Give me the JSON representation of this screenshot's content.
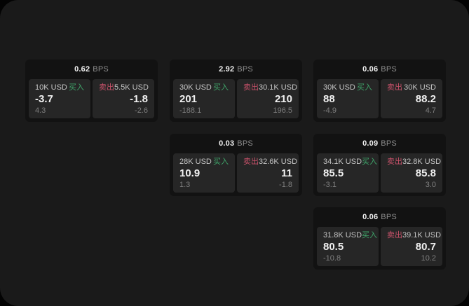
{
  "colors": {
    "window-bg": "#1a1a1a",
    "card-bg": "#121212",
    "tile-bg": "#262626",
    "text-bright": "#f0f0f0",
    "text-label": "#c4c4c4",
    "text-dim": "#8f8f8f",
    "text-faint": "#7f7f7f",
    "buy-green": "#3fa56a",
    "sell-red": "#c9526a"
  },
  "cards": [
    {
      "bps_value": "0.62",
      "bps_unit": "BPS",
      "buy": {
        "amount": "10K USD",
        "side_label": "买入",
        "value": "-3.7",
        "sub_value": "4.3"
      },
      "sell": {
        "amount": "5.5K USD",
        "side_label": "卖出",
        "value": "-1.8",
        "sub_value": "-2.6"
      }
    },
    {
      "bps_value": "2.92",
      "bps_unit": "BPS",
      "buy": {
        "amount": "30K USD",
        "side_label": "买入",
        "value": "201",
        "sub_value": "-188.1"
      },
      "sell": {
        "amount": "30.1K USD",
        "side_label": "卖出",
        "value": "210",
        "sub_value": "196.5"
      }
    },
    {
      "bps_value": "0.06",
      "bps_unit": "BPS",
      "buy": {
        "amount": "30K USD",
        "side_label": "买入",
        "value": "88",
        "sub_value": "-4.9"
      },
      "sell": {
        "amount": "30K USD",
        "side_label": "卖出",
        "value": "88.2",
        "sub_value": "4.7"
      }
    },
    {
      "bps_value": "0.03",
      "bps_unit": "BPS",
      "buy": {
        "amount": "28K USD",
        "side_label": "买入",
        "value": "10.9",
        "sub_value": "1.3"
      },
      "sell": {
        "amount": "32.6K USD",
        "side_label": "卖出",
        "value": "11",
        "sub_value": "-1.8"
      }
    },
    {
      "bps_value": "0.09",
      "bps_unit": "BPS",
      "buy": {
        "amount": "34.1K USD",
        "side_label": "买入",
        "value": "85.5",
        "sub_value": "-3.1"
      },
      "sell": {
        "amount": "32.8K USD",
        "side_label": "卖出",
        "value": "85.8",
        "sub_value": "3.0"
      }
    },
    {
      "bps_value": "0.06",
      "bps_unit": "BPS",
      "buy": {
        "amount": "31.8K USD",
        "side_label": "买入",
        "value": "80.5",
        "sub_value": "-10.8"
      },
      "sell": {
        "amount": "39.1K USD",
        "side_label": "卖出",
        "value": "80.7",
        "sub_value": "10.2"
      }
    }
  ]
}
